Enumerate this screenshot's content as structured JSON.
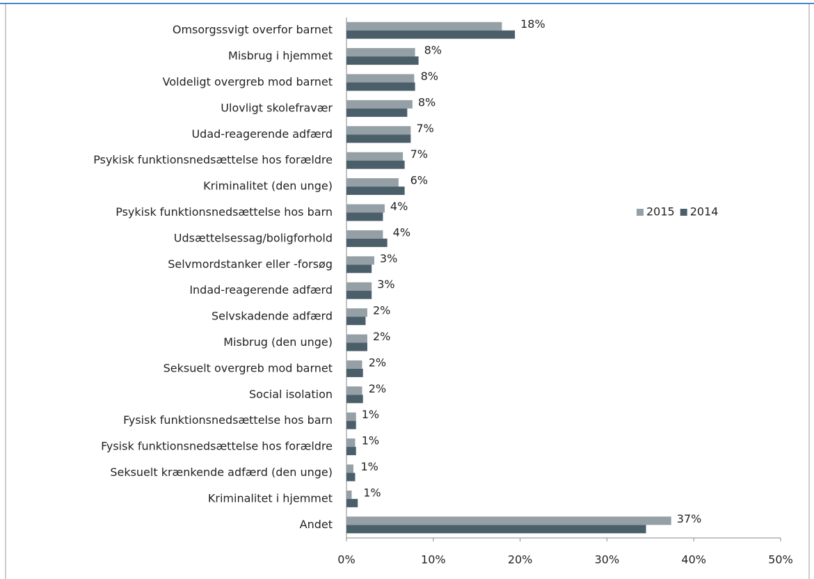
{
  "chart_data": {
    "type": "hbar",
    "categories": [
      "Omsorgssvigt overfor barnet",
      "Misbrug i hjemmet",
      "Voldeligt overgreb mod barnet",
      "Ulovligt skolefravær",
      "Udad-reagerende adfærd",
      "Psykisk funktionsnedsættelse hos forældre",
      "Kriminalitet (den unge)",
      "Psykisk funktionsnedsættelse hos barn",
      "Udsættelsessag/boligforhold",
      "Selvmordstanker eller -forsøg",
      "Indad-reagerende adfærd",
      "Selvskadende adfærd",
      "Misbrug (den unge)",
      "Seksuelt overgreb mod barnet",
      "Social isolation",
      "Fysisk funktionsnedsættelse hos barn",
      "Fysisk funktionsnedsættelse hos forældre",
      "Seksuelt krænkende adfærd (den unge)",
      "Kriminalitet i hjemmet",
      "Andet"
    ],
    "series": [
      {
        "name": "2015",
        "color": "#959fa6",
        "values": [
          17.9,
          7.9,
          7.8,
          7.6,
          7.4,
          6.5,
          6.0,
          4.4,
          4.2,
          3.2,
          2.9,
          2.4,
          2.4,
          1.8,
          1.8,
          1.1,
          1.0,
          0.8,
          0.6,
          37.4
        ],
        "value_labels": [
          "18%",
          "8%",
          "8%",
          "8%",
          "7%",
          "7%",
          "6%",
          "4%",
          "4%",
          "3%",
          "3%",
          "2%",
          "2%",
          "2%",
          "2%",
          "1%",
          "1%",
          "1%",
          "1%",
          "37%"
        ]
      },
      {
        "name": "2014",
        "color": "#4b5f6b",
        "values": [
          19.4,
          8.3,
          7.9,
          7.0,
          7.4,
          6.7,
          6.7,
          4.2,
          4.7,
          2.9,
          2.9,
          2.2,
          2.4,
          1.9,
          1.9,
          1.1,
          1.1,
          1.0,
          1.3,
          34.5
        ]
      }
    ],
    "xlim": [
      0,
      50
    ],
    "xticks": [
      {
        "value": 0,
        "label": "0%"
      },
      {
        "value": 10,
        "label": "10%"
      },
      {
        "value": 20,
        "label": "20%"
      },
      {
        "value": 30,
        "label": "30%"
      },
      {
        "value": 40,
        "label": "40%"
      },
      {
        "value": 50,
        "label": "50%"
      }
    ],
    "legend": "right"
  }
}
